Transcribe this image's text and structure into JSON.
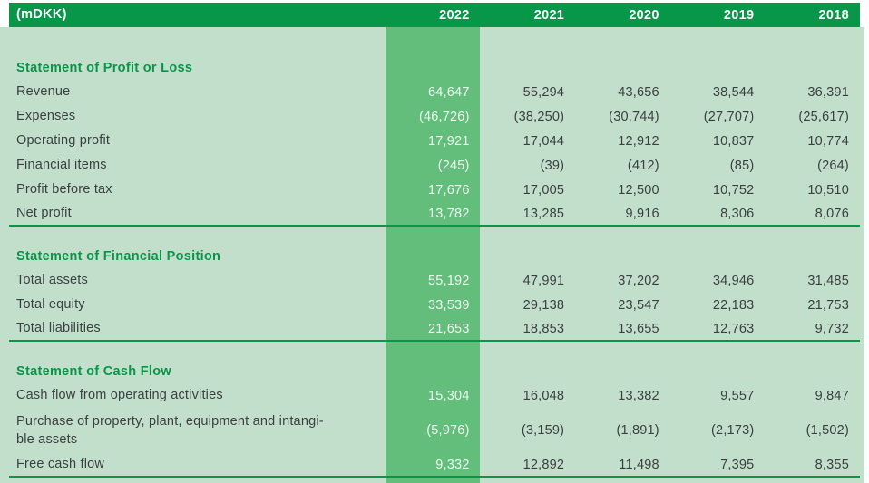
{
  "table": {
    "unit_label": "(mDKK)",
    "years": [
      "2022",
      "2021",
      "2020",
      "2019",
      "2018"
    ],
    "highlight_year": "2022",
    "sections": [
      {
        "title": "Statement of Profit or Loss",
        "rows": [
          {
            "label": "Revenue",
            "values": [
              "64,647",
              "55,294",
              "43,656",
              "38,544",
              "36,391"
            ]
          },
          {
            "label": "Expenses",
            "values": [
              "(46,726)",
              "(38,250)",
              "(30,744)",
              "(27,707)",
              "(25,617)"
            ]
          },
          {
            "label": "Operating profit",
            "values": [
              "17,921",
              "17,044",
              "12,912",
              "10,837",
              "10,774"
            ]
          },
          {
            "label": "Financial items",
            "values": [
              "(245)",
              "(39)",
              "(412)",
              "(85)",
              "(264)"
            ]
          },
          {
            "label": "Profit before tax",
            "values": [
              "17,676",
              "17,005",
              "12,500",
              "10,752",
              "10,510"
            ]
          },
          {
            "label": "Net profit",
            "values": [
              "13,782",
              "13,285",
              "9,916",
              "8,306",
              "8,076"
            ]
          }
        ]
      },
      {
        "title": "Statement of Financial Position",
        "rows": [
          {
            "label": "Total assets",
            "values": [
              "55,192",
              "47,991",
              "37,202",
              "34,946",
              "31,485"
            ]
          },
          {
            "label": "Total equity",
            "values": [
              "33,539",
              "29,138",
              "23,547",
              "22,183",
              "21,753"
            ]
          },
          {
            "label": "Total liabilities",
            "values": [
              "21,653",
              "18,853",
              "13,655",
              "12,763",
              "9,732"
            ]
          }
        ]
      },
      {
        "title": "Statement of Cash Flow",
        "rows": [
          {
            "label": "Cash flow from operating activities",
            "values": [
              "15,304",
              "16,048",
              "13,382",
              "9,557",
              "9,847"
            ]
          },
          {
            "label": "Purchase of property, plant, equipment and intangi-\nble assets",
            "values": [
              "(5,976)",
              "(3,159)",
              "(1,891)",
              "(2,173)",
              "(1,502)"
            ]
          },
          {
            "label": "Free cash flow",
            "values": [
              "9,332",
              "12,892",
              "11,498",
              "7,395",
              "8,355"
            ]
          }
        ]
      }
    ],
    "colors": {
      "header_green": "#089649",
      "highlight_green": "#63be7b",
      "background_green": "#c1dfca",
      "rule_green": "#0a9649",
      "section_title_green": "#089649",
      "body_text": "#3c4043",
      "header_text": "#ffffff",
      "highlight_text": "#edf6f0"
    }
  }
}
